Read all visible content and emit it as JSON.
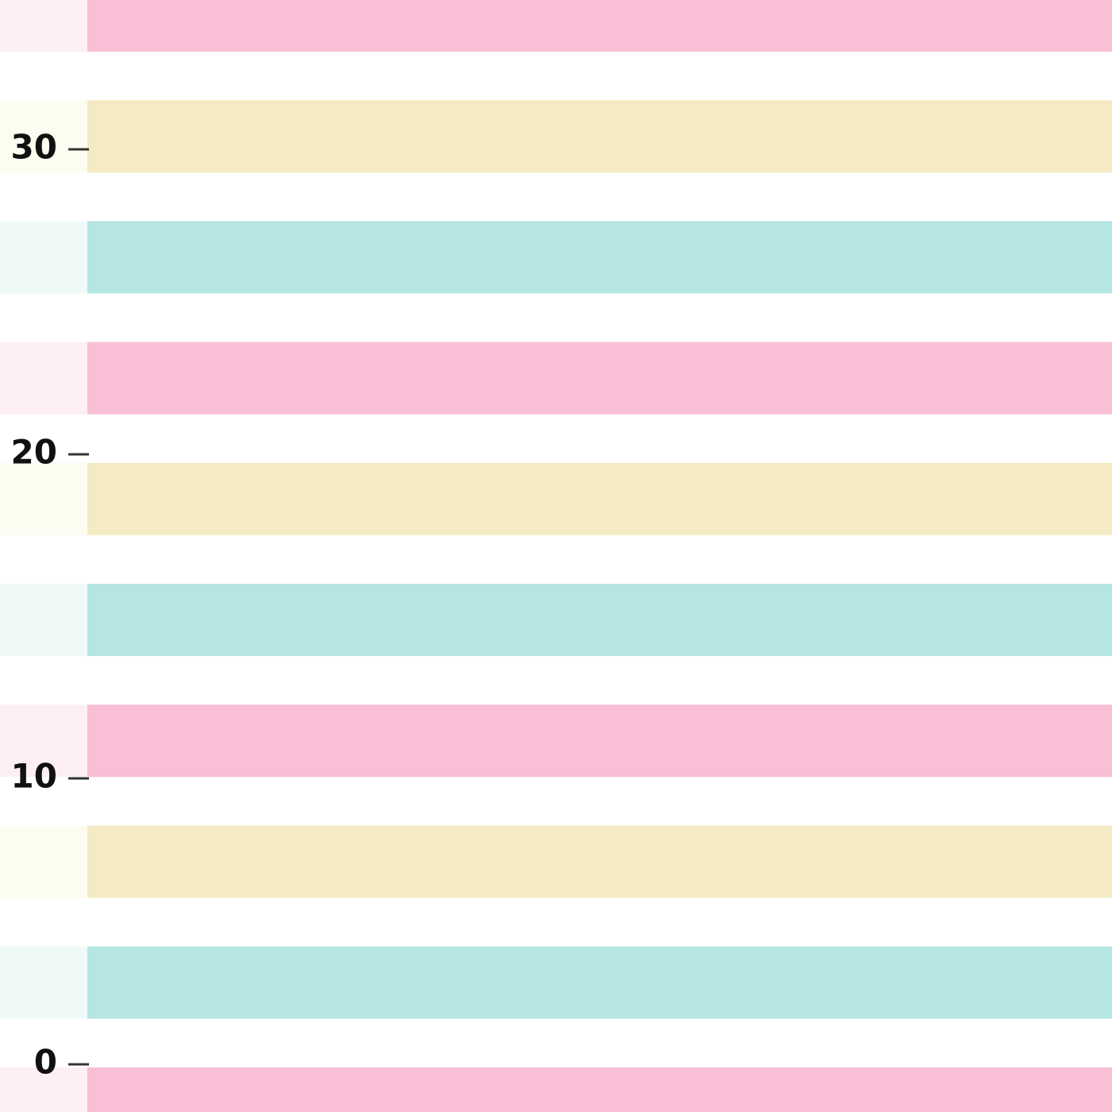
{
  "axis": {
    "ticks": [
      30,
      20,
      10,
      0
    ]
  }
}
